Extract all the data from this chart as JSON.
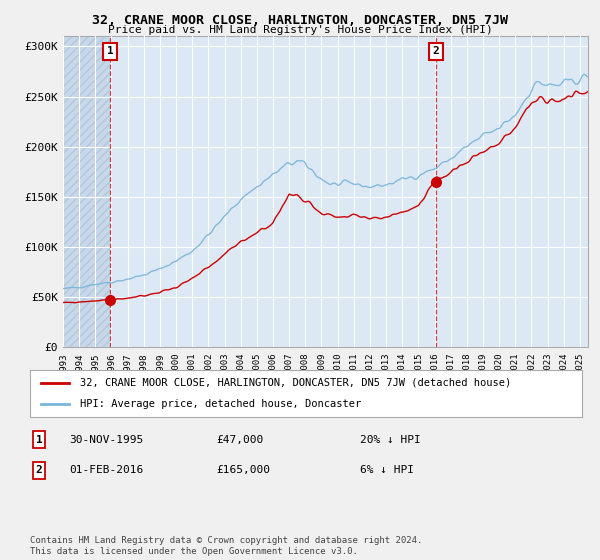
{
  "title": "32, CRANE MOOR CLOSE, HARLINGTON, DONCASTER, DN5 7JW",
  "subtitle": "Price paid vs. HM Land Registry's House Price Index (HPI)",
  "hpi_label": "HPI: Average price, detached house, Doncaster",
  "property_label": "32, CRANE MOOR CLOSE, HARLINGTON, DONCASTER, DN5 7JW (detached house)",
  "sale1_date": "30-NOV-1995",
  "sale1_price": 47000,
  "sale1_note": "20% ↓ HPI",
  "sale2_date": "01-FEB-2016",
  "sale2_price": 165000,
  "sale2_note": "6% ↓ HPI",
  "sale1_x": 1995.92,
  "sale2_x": 2016.08,
  "ylim": [
    0,
    310000
  ],
  "xlim_start": 1993.0,
  "xlim_end": 2025.5,
  "hpi_color": "#7ab4d8",
  "property_color": "#cc0000",
  "vline_color": "#cc0000",
  "background_color": "#f0f0f0",
  "plot_bg_color": "#dce9f5",
  "grid_color": "#ffffff",
  "hatch_color": "#c8d8e8",
  "footnote": "Contains HM Land Registry data © Crown copyright and database right 2024.\nThis data is licensed under the Open Government Licence v3.0.",
  "yticks": [
    0,
    50000,
    100000,
    150000,
    200000,
    250000,
    300000
  ],
  "ytick_labels": [
    "£0",
    "£50K",
    "£100K",
    "£150K",
    "£200K",
    "£250K",
    "£300K"
  ],
  "xticks": [
    1993,
    1994,
    1995,
    1996,
    1997,
    1998,
    1999,
    2000,
    2001,
    2002,
    2003,
    2004,
    2005,
    2006,
    2007,
    2008,
    2009,
    2010,
    2011,
    2012,
    2013,
    2014,
    2015,
    2016,
    2017,
    2018,
    2019,
    2020,
    2021,
    2022,
    2023,
    2024,
    2025
  ]
}
